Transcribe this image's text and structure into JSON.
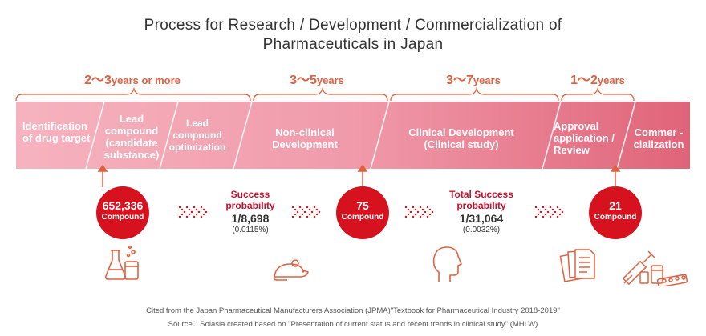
{
  "title_line1": "Process for Research / Development / Commercialization of",
  "title_line2": "Pharmaceuticals in Japan",
  "durations": [
    {
      "num": "2～3",
      "unit": "years or more"
    },
    {
      "num": "3～5",
      "unit": "years"
    },
    {
      "num": "3～7",
      "unit": "years"
    },
    {
      "num": "1～2",
      "unit": "years"
    }
  ],
  "stages": [
    "Identification of drug target",
    "Lead compound (candidate substance)",
    "Lead compound optimization",
    "Non-clinical Development",
    "Clinical Development (Clinical study)",
    "Approval application / Review",
    "Commer -cialization"
  ],
  "compounds": [
    {
      "value": "652,336",
      "unit": "Compound"
    },
    {
      "value": "75",
      "unit": "Compound"
    },
    {
      "value": "21",
      "unit": "Compound"
    }
  ],
  "probabilities": [
    {
      "label_a": "Success",
      "label_b": "probability",
      "ratio": "1/8,698",
      "percent": "(0.0115%)"
    },
    {
      "label_a": "Total Success",
      "label_b": "probability",
      "ratio": "1/31,064",
      "percent": "(0.0032%)"
    }
  ],
  "icons": [
    "lab-flask-icon",
    "mouse-icon",
    "human-head-icon",
    "documents-icon",
    "medicine-syringe-icon"
  ],
  "colors": {
    "accent": "#d5121e",
    "duration_text": "#e0603f",
    "band_light": "#f6b3bf",
    "band_dark": "#e06479"
  },
  "footer_line1": "Cited from the Japan Pharmaceutical Manufacturers Association (JPMA)\"Textbook for Pharmaceutical Industry 2018-2019\"",
  "footer_line2": "Source：Solasia created based on \"Presentation of current status and recent trends in clinical study\" (MHLW)"
}
